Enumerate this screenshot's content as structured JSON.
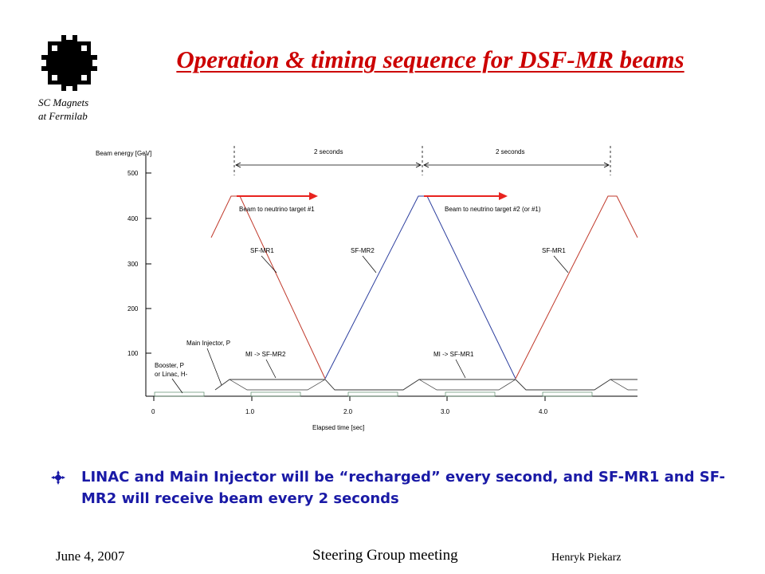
{
  "header": {
    "title": "Operation & timing sequence for DSF-MR beams",
    "logo_caption_line1": "SC Magnets",
    "logo_caption_line2": "at Fermilab"
  },
  "diagram": {
    "y_axis_title": "Beam energy  [GeV]",
    "y_ticks": [
      "500",
      "400",
      "300",
      "200",
      "100"
    ],
    "x_ticks": [
      "0",
      "1.0",
      "2.0",
      "3.0",
      "4.0"
    ],
    "x_axis_title": "Elapsed time  [sec]",
    "interval_labels": [
      "2 seconds",
      "2 seconds"
    ],
    "labels": {
      "beam1": "Beam to neutrino target #1",
      "beam2": "Beam to neutrino target #2   (or #1)",
      "sfmr1_a": "SF-MR1",
      "sfmr2": "SF-MR2",
      "sfmr1_b": "SF-MR1",
      "main_injector": "Main Injector, P",
      "mi_sfmr2": "MI -> SF-MR2",
      "mi_sfmr1": "MI -> SF-MR1",
      "booster1": "Booster, P",
      "booster2": "or Linac, H-"
    },
    "colors": {
      "sfmr1": "#c0392b",
      "sfmr2": "#2c3e9e",
      "arrow": "#e8231f"
    }
  },
  "bullet": {
    "text": "LINAC and Main Injector will be “recharged” every second, and SF-MR1 and SF-MR2 will receive beam every 2 seconds"
  },
  "footer": {
    "date": "June 4, 2007",
    "meeting": "Steering Group meeting",
    "author": "Henryk Piekarz"
  }
}
